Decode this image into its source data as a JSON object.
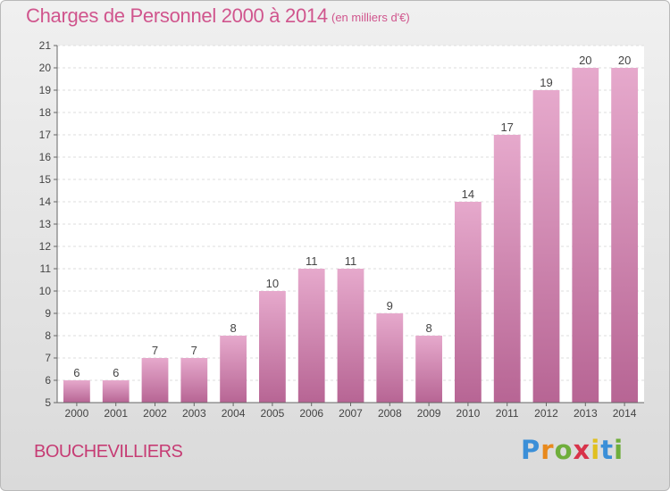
{
  "header": {
    "title": "Charges de Personnel 2000 à 2014",
    "subtitle": "(en milliers d'€)"
  },
  "footer": {
    "commune": "BOUCHEVILLIERS",
    "logo": [
      "P",
      "r",
      "o",
      "x",
      "i",
      "t",
      "i"
    ]
  },
  "colors": {
    "accent": "#d0558d",
    "bar_light": "#e6a9cc",
    "bar_dark": "#b76594",
    "logo": [
      "#3b8fd8",
      "#e8891c",
      "#6fae3b",
      "#d8334a",
      "#e0c020",
      "#3b8fd8",
      "#6fae3b"
    ]
  },
  "chart_data": {
    "type": "bar",
    "categories": [
      "2000",
      "2001",
      "2002",
      "2003",
      "2004",
      "2005",
      "2006",
      "2007",
      "2008",
      "2009",
      "2010",
      "2011",
      "2012",
      "2013",
      "2014"
    ],
    "values": [
      6,
      6,
      7,
      7,
      8,
      10,
      11,
      11,
      9,
      8,
      14,
      17,
      19,
      20,
      20
    ],
    "title": "Charges de Personnel 2000 à 2014",
    "subtitle": "(en milliers d'€)",
    "xlabel": "",
    "ylabel": "",
    "ylim": [
      5,
      21
    ],
    "yticks": [
      5,
      6,
      7,
      8,
      9,
      10,
      11,
      12,
      13,
      14,
      15,
      16,
      17,
      18,
      19,
      20,
      21
    ],
    "grid": true,
    "legend": "none"
  }
}
